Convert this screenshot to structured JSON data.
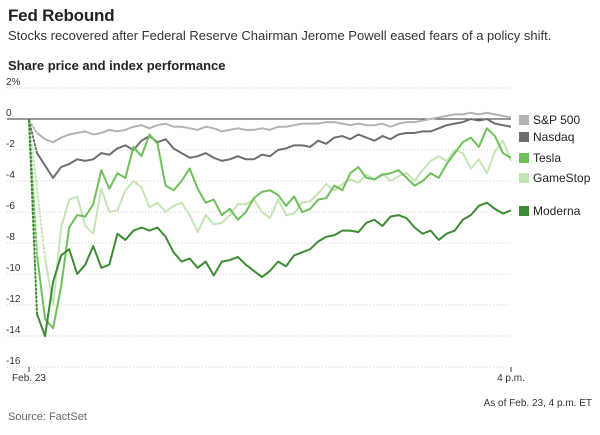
{
  "header": {
    "title": "Fed Rebound",
    "subtitle": "Stocks recovered after Federal Reserve Chairman Jerome Powell eased fears of a policy shift.",
    "chart_heading": "Share price and index performance"
  },
  "footer": {
    "source": "Source: FactSet",
    "as_of": "As of Feb. 23, 4 p.m. ET"
  },
  "colors": {
    "sp500": "#b3b3b3",
    "nasdaq": "#6e6e6e",
    "tesla": "#6fbf5a",
    "gamestop": "#c5e4b6",
    "moderna": "#3f8a35",
    "zero_line": "#333333",
    "grid": "#cfcfcf"
  },
  "chart_data": {
    "type": "line",
    "title": "Share price and index performance",
    "ylabel": "%",
    "ylim": [
      -16,
      2
    ],
    "y_ticks": [
      2,
      0,
      -2,
      -4,
      -6,
      -8,
      -10,
      -12,
      -14,
      -16
    ],
    "y_tick_labels": [
      "2%",
      "0",
      "-2",
      "-4",
      "-6",
      "-8",
      "-10",
      "-12",
      "-14",
      "-16"
    ],
    "x_tick_labels": [
      "Feb. 23",
      "4 p.m."
    ],
    "xlim": [
      0,
      60
    ],
    "grid": true,
    "legend_position": "right",
    "series": [
      {
        "name": "S&P 500",
        "color_key": "sp500",
        "dotted_until": 1,
        "x": [
          0,
          1,
          2,
          3,
          4,
          5,
          6,
          7,
          8,
          9,
          10,
          11,
          12,
          13,
          14,
          15,
          16,
          17,
          18,
          19,
          20,
          21,
          22,
          23,
          24,
          25,
          26,
          27,
          28,
          29,
          30,
          31,
          32,
          33,
          34,
          35,
          36,
          37,
          38,
          39,
          40,
          41,
          42,
          43,
          44,
          45,
          46,
          47,
          48,
          49,
          50,
          51,
          52,
          53,
          54,
          55,
          56,
          57,
          58,
          59,
          60
        ],
        "values": [
          -0.1,
          -0.9,
          -1.3,
          -1.5,
          -1.2,
          -1.0,
          -0.9,
          -0.8,
          -1.0,
          -0.9,
          -0.7,
          -0.8,
          -0.7,
          -0.5,
          -0.4,
          -0.6,
          -0.4,
          -0.3,
          -0.5,
          -0.5,
          -0.6,
          -0.7,
          -0.5,
          -0.6,
          -0.8,
          -0.7,
          -0.6,
          -0.7,
          -0.7,
          -0.6,
          -0.7,
          -0.5,
          -0.5,
          -0.4,
          -0.3,
          -0.3,
          -0.3,
          -0.2,
          -0.2,
          -0.3,
          -0.4,
          -0.3,
          -0.4,
          -0.4,
          -0.3,
          -0.5,
          -0.3,
          -0.2,
          -0.2,
          -0.1,
          0.0,
          0.1,
          0.2,
          0.3,
          0.3,
          0.4,
          0.3,
          0.4,
          0.3,
          0.2,
          0.1
        ]
      },
      {
        "name": "Nasdaq",
        "color_key": "nasdaq",
        "dotted_until": 1,
        "x": [
          0,
          1,
          2,
          3,
          4,
          5,
          6,
          7,
          8,
          9,
          10,
          11,
          12,
          13,
          14,
          15,
          16,
          17,
          18,
          19,
          20,
          21,
          22,
          23,
          24,
          25,
          26,
          27,
          28,
          29,
          30,
          31,
          32,
          33,
          34,
          35,
          36,
          37,
          38,
          39,
          40,
          41,
          42,
          43,
          44,
          45,
          46,
          47,
          48,
          49,
          50,
          51,
          52,
          53,
          54,
          55,
          56,
          57,
          58,
          59,
          60
        ],
        "values": [
          -0.1,
          -2.2,
          -3.0,
          -3.8,
          -3.1,
          -2.9,
          -2.6,
          -2.7,
          -2.6,
          -2.2,
          -2.3,
          -1.9,
          -1.7,
          -2.0,
          -1.4,
          -1.1,
          -1.5,
          -1.3,
          -1.9,
          -2.2,
          -2.5,
          -2.4,
          -2.2,
          -2.5,
          -2.7,
          -2.6,
          -2.4,
          -2.6,
          -2.6,
          -2.3,
          -2.4,
          -2.0,
          -1.9,
          -1.7,
          -1.7,
          -1.8,
          -1.4,
          -1.6,
          -1.2,
          -1.1,
          -1.3,
          -1.0,
          -1.2,
          -1.4,
          -1.1,
          -1.3,
          -1.0,
          -0.9,
          -0.9,
          -0.8,
          -0.8,
          -0.6,
          -0.4,
          -0.3,
          -0.2,
          0.0,
          -0.1,
          0.0,
          -0.3,
          -0.4,
          -0.5
        ]
      },
      {
        "name": "Tesla",
        "color_key": "tesla",
        "dotted_until": 1,
        "x": [
          0,
          1,
          2,
          3,
          4,
          5,
          6,
          7,
          8,
          9,
          10,
          11,
          12,
          13,
          14,
          15,
          16,
          17,
          18,
          19,
          20,
          21,
          22,
          23,
          24,
          25,
          26,
          27,
          28,
          29,
          30,
          31,
          32,
          33,
          34,
          35,
          36,
          37,
          38,
          39,
          40,
          41,
          42,
          43,
          44,
          45,
          46,
          47,
          48,
          49,
          50,
          51,
          52,
          53,
          54,
          55,
          56,
          57,
          58,
          59,
          60
        ],
        "values": [
          -0.1,
          -8.8,
          -12.9,
          -13.5,
          -10.8,
          -7.0,
          -6.2,
          -6.3,
          -5.5,
          -3.3,
          -4.5,
          -3.5,
          -3.8,
          -1.8,
          -2.4,
          -1.0,
          -1.6,
          -4.3,
          -4.6,
          -4.0,
          -3.2,
          -4.5,
          -5.4,
          -5.2,
          -6.2,
          -5.8,
          -6.5,
          -6.0,
          -5.1,
          -4.7,
          -4.6,
          -4.9,
          -5.6,
          -5.0,
          -6.0,
          -5.8,
          -5.2,
          -5.1,
          -4.3,
          -4.6,
          -3.5,
          -3.1,
          -3.8,
          -3.9,
          -3.6,
          -3.5,
          -3.3,
          -3.8,
          -4.3,
          -4.0,
          -3.5,
          -3.8,
          -2.9,
          -2.2,
          -1.5,
          -1.2,
          -1.8,
          -0.6,
          -1.1,
          -2.2,
          -2.5
        ]
      },
      {
        "name": "GameStop",
        "color_key": "gamestop",
        "dotted_until": 2,
        "x": [
          0,
          1,
          2,
          3,
          4,
          5,
          6,
          7,
          8,
          9,
          10,
          11,
          12,
          13,
          14,
          15,
          16,
          17,
          18,
          19,
          20,
          21,
          22,
          23,
          24,
          25,
          26,
          27,
          28,
          29,
          30,
          31,
          32,
          33,
          34,
          35,
          36,
          37,
          38,
          39,
          40,
          41,
          42,
          43,
          44,
          45,
          46,
          47,
          48,
          49,
          50,
          51,
          52,
          53,
          54,
          55,
          56,
          57,
          58,
          59,
          60
        ],
        "values": [
          -0.1,
          -4.5,
          -9.0,
          -12.0,
          -7.0,
          -5.2,
          -5.0,
          -6.9,
          -7.4,
          -4.5,
          -6.0,
          -5.9,
          -4.6,
          -4.0,
          -4.4,
          -5.7,
          -5.4,
          -6.0,
          -5.6,
          -5.4,
          -6.2,
          -7.3,
          -6.2,
          -6.8,
          -6.7,
          -6.2,
          -5.5,
          -5.5,
          -5.2,
          -6.0,
          -6.4,
          -5.2,
          -6.2,
          -6.1,
          -5.4,
          -5.3,
          -4.8,
          -4.2,
          -4.6,
          -4.2,
          -3.9,
          -4.1,
          -3.6,
          -3.9,
          -3.5,
          -4.0,
          -3.7,
          -3.5,
          -4.0,
          -3.3,
          -2.7,
          -2.4,
          -2.7,
          -2.0,
          -2.2,
          -3.2,
          -2.6,
          -3.5,
          -2.1,
          -1.4,
          -2.7
        ]
      },
      {
        "name": "Moderna",
        "color_key": "moderna",
        "dotted_until": 1,
        "x": [
          0,
          1,
          2,
          3,
          4,
          5,
          6,
          7,
          8,
          9,
          10,
          11,
          12,
          13,
          14,
          15,
          16,
          17,
          18,
          19,
          20,
          21,
          22,
          23,
          24,
          25,
          26,
          27,
          28,
          29,
          30,
          31,
          32,
          33,
          34,
          35,
          36,
          37,
          38,
          39,
          40,
          41,
          42,
          43,
          44,
          45,
          46,
          47,
          48,
          49,
          50,
          51,
          52,
          53,
          54,
          55,
          56,
          57,
          58,
          59,
          60
        ],
        "values": [
          -0.1,
          -12.6,
          -14.0,
          -10.5,
          -8.8,
          -8.4,
          -10.0,
          -9.4,
          -8.2,
          -9.6,
          -9.4,
          -7.4,
          -7.8,
          -7.2,
          -7.0,
          -7.2,
          -7.0,
          -7.6,
          -8.6,
          -9.2,
          -9.0,
          -9.6,
          -9.2,
          -10.1,
          -9.2,
          -9.1,
          -8.9,
          -9.4,
          -9.8,
          -10.2,
          -9.8,
          -9.2,
          -9.5,
          -8.8,
          -8.6,
          -8.4,
          -7.9,
          -7.6,
          -7.5,
          -7.2,
          -7.2,
          -7.3,
          -6.7,
          -6.5,
          -6.9,
          -6.3,
          -6.2,
          -6.4,
          -7.0,
          -7.4,
          -7.2,
          -7.8,
          -7.4,
          -7.2,
          -6.5,
          -6.2,
          -5.6,
          -5.4,
          -5.8,
          -6.1,
          -5.9
        ]
      }
    ]
  }
}
